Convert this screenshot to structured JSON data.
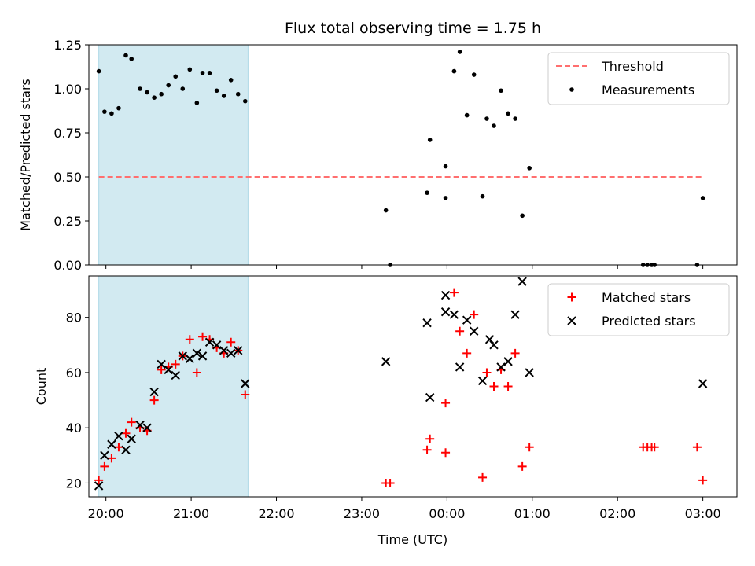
{
  "title": "Flux total observing time = 1.75 h",
  "chart_data": [
    {
      "type": "scatter",
      "ylabel": "Matched/Predicted stars",
      "xlabel": "",
      "xlim": [
        "19:48",
        "03:24"
      ],
      "ylim": [
        0,
        1.25
      ],
      "yticks": [
        "0.00",
        "0.25",
        "0.50",
        "0.75",
        "1.00",
        "1.25"
      ],
      "xticks": [
        "20:00",
        "21:00",
        "22:00",
        "23:00",
        "00:00",
        "01:00",
        "02:00",
        "03:00"
      ],
      "shaded_span": [
        "19:55",
        "21:40"
      ],
      "shaded_color": "#add8e6",
      "threshold": {
        "name": "Threshold",
        "value": 0.5,
        "x_range": [
          "19:55",
          "03:00"
        ],
        "color": "#ff6f6f"
      },
      "legend": {
        "position": "upper right",
        "entries": [
          "Threshold",
          "Measurements"
        ]
      },
      "series": [
        {
          "name": "Measurements",
          "color": "#000000",
          "x": [
            "19:55",
            "19:59",
            "20:04",
            "20:09",
            "20:14",
            "20:18",
            "20:24",
            "20:29",
            "20:34",
            "20:39",
            "20:44",
            "20:49",
            "20:54",
            "20:59",
            "21:04",
            "21:08",
            "21:13",
            "21:18",
            "21:23",
            "21:28",
            "21:33",
            "21:38",
            "23:17",
            "23:20",
            "23:46",
            "23:48",
            "23:59",
            "23:59",
            "00:05",
            "00:09",
            "00:14",
            "00:19",
            "00:25",
            "00:28",
            "00:33",
            "00:38",
            "00:43",
            "00:48",
            "00:53",
            "00:58",
            "02:18",
            "02:21",
            "02:24",
            "02:26",
            "02:56",
            "03:00"
          ],
          "y": [
            1.1,
            0.87,
            0.86,
            0.89,
            1.19,
            1.17,
            1.0,
            0.98,
            0.95,
            0.97,
            1.02,
            1.07,
            1.0,
            1.11,
            0.92,
            1.09,
            1.09,
            0.99,
            0.96,
            1.05,
            0.97,
            0.93,
            0.31,
            0.0,
            0.41,
            0.71,
            0.38,
            0.56,
            1.1,
            1.21,
            0.85,
            1.08,
            0.39,
            0.83,
            0.79,
            0.99,
            0.86,
            0.83,
            0.28,
            0.55,
            0.0,
            0.0,
            0.0,
            0.0,
            0.0,
            0.38
          ]
        }
      ]
    },
    {
      "type": "scatter",
      "ylabel": "Count",
      "xlabel": "Time (UTC)",
      "xlim": [
        "19:48",
        "03:24"
      ],
      "ylim": [
        15,
        95
      ],
      "yticks": [
        "20",
        "40",
        "60",
        "80"
      ],
      "xticks": [
        "20:00",
        "21:00",
        "22:00",
        "23:00",
        "00:00",
        "01:00",
        "02:00",
        "03:00"
      ],
      "shaded_span": [
        "19:55",
        "21:40"
      ],
      "shaded_color": "#add8e6",
      "legend": {
        "position": "upper right",
        "entries": [
          "Matched stars",
          "Predicted stars"
        ]
      },
      "series": [
        {
          "name": "Matched stars",
          "marker": "plus",
          "color": "#ff0000",
          "x": [
            "19:55",
            "19:59",
            "20:04",
            "20:09",
            "20:14",
            "20:18",
            "20:24",
            "20:29",
            "20:34",
            "20:39",
            "20:44",
            "20:49",
            "20:54",
            "20:59",
            "21:04",
            "21:08",
            "21:13",
            "21:18",
            "21:23",
            "21:28",
            "21:33",
            "21:38",
            "23:17",
            "23:20",
            "23:46",
            "23:48",
            "23:59",
            "23:59",
            "00:05",
            "00:09",
            "00:14",
            "00:19",
            "00:25",
            "00:28",
            "00:33",
            "00:38",
            "00:43",
            "00:48",
            "00:53",
            "00:58",
            "02:18",
            "02:21",
            "02:24",
            "02:26",
            "02:56",
            "03:00"
          ],
          "y": [
            21,
            26,
            29,
            33,
            38,
            42,
            40,
            39,
            50,
            61,
            62,
            63,
            66,
            72,
            60,
            73,
            72,
            69,
            67,
            71,
            68,
            52,
            20,
            20,
            32,
            36,
            31,
            49,
            89,
            75,
            67,
            81,
            22,
            60,
            55,
            61,
            55,
            67,
            26,
            33,
            33,
            33,
            33,
            33,
            33,
            21
          ]
        },
        {
          "name": "Predicted stars",
          "marker": "x",
          "color": "#000000",
          "x": [
            "19:55",
            "19:59",
            "20:04",
            "20:09",
            "20:14",
            "20:18",
            "20:24",
            "20:29",
            "20:34",
            "20:39",
            "20:44",
            "20:49",
            "20:54",
            "20:59",
            "21:04",
            "21:08",
            "21:13",
            "21:18",
            "21:23",
            "21:28",
            "21:33",
            "21:38",
            "23:17",
            "23:46",
            "23:48",
            "23:59",
            "23:59",
            "00:05",
            "00:09",
            "00:14",
            "00:19",
            "00:25",
            "00:30",
            "00:33",
            "00:38",
            "00:43",
            "00:48",
            "00:53",
            "00:58",
            "03:00"
          ],
          "y": [
            19,
            30,
            34,
            37,
            32,
            36,
            41,
            40,
            53,
            63,
            61,
            59,
            66,
            65,
            67,
            66,
            71,
            70,
            68,
            67,
            68,
            56,
            64,
            78,
            51,
            82,
            88,
            81,
            62,
            79,
            75,
            57,
            72,
            70,
            62,
            64,
            81,
            93,
            60,
            56
          ]
        }
      ]
    }
  ]
}
